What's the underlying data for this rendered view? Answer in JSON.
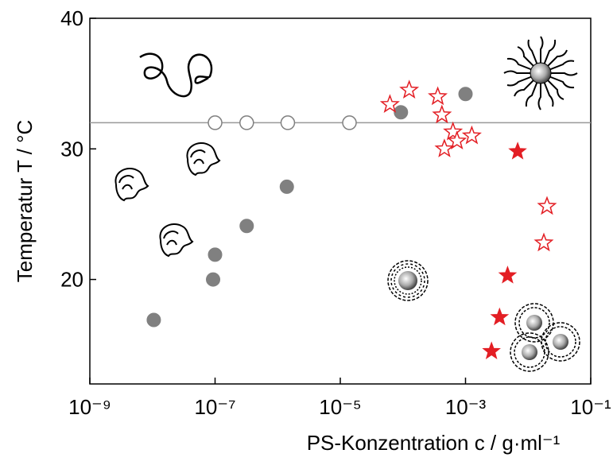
{
  "chart_data": {
    "type": "scatter",
    "x_label": "PS-Konzentration c / g·ml⁻¹",
    "y_label": "Temperatur T / °C",
    "xscale": "log",
    "xlim": [
      1e-09,
      0.1
    ],
    "ylim": [
      12,
      40
    ],
    "xticks": [
      {
        "value": 1e-09,
        "label": "10⁻⁹"
      },
      {
        "value": 1e-07,
        "label": "10⁻⁷"
      },
      {
        "value": 1e-05,
        "label": "10⁻⁵"
      },
      {
        "value": 0.001,
        "label": "10⁻³"
      },
      {
        "value": 0.1,
        "label": "10⁻¹"
      }
    ],
    "yticks": [
      20,
      30,
      40
    ],
    "reference_line": {
      "y": 32,
      "color": "#999999"
    },
    "series": [
      {
        "marker": "circle",
        "filled": true,
        "color": "#808080",
        "x": [
          1.05e-08,
          9.3e-08,
          1e-07,
          3.2e-07,
          1.4e-06,
          9.3e-05,
          0.001
        ],
        "values": [
          16.9,
          20.0,
          21.9,
          24.1,
          27.1,
          32.8,
          34.2
        ]
      },
      {
        "marker": "circle",
        "filled": false,
        "color": "#808080",
        "x": [
          1e-07,
          3.2e-07,
          1.45e-06,
          1.4e-05
        ],
        "values": [
          32,
          32,
          32,
          32
        ]
      },
      {
        "marker": "star",
        "filled": false,
        "color": "#e31e24",
        "x": [
          6.2e-05,
          0.000126,
          0.00036,
          0.00042,
          0.00063,
          0.00073,
          0.00046,
          0.00126,
          0.02,
          0.0178
        ],
        "values": [
          33.4,
          34.5,
          34.0,
          32.6,
          31.3,
          30.6,
          30.0,
          31.0,
          25.6,
          22.8
        ]
      },
      {
        "marker": "star",
        "filled": true,
        "color": "#e31e24",
        "x": [
          0.0068,
          0.0047,
          0.0035,
          0.0026
        ],
        "values": [
          29.8,
          20.3,
          17.1,
          14.5
        ]
      }
    ]
  }
}
